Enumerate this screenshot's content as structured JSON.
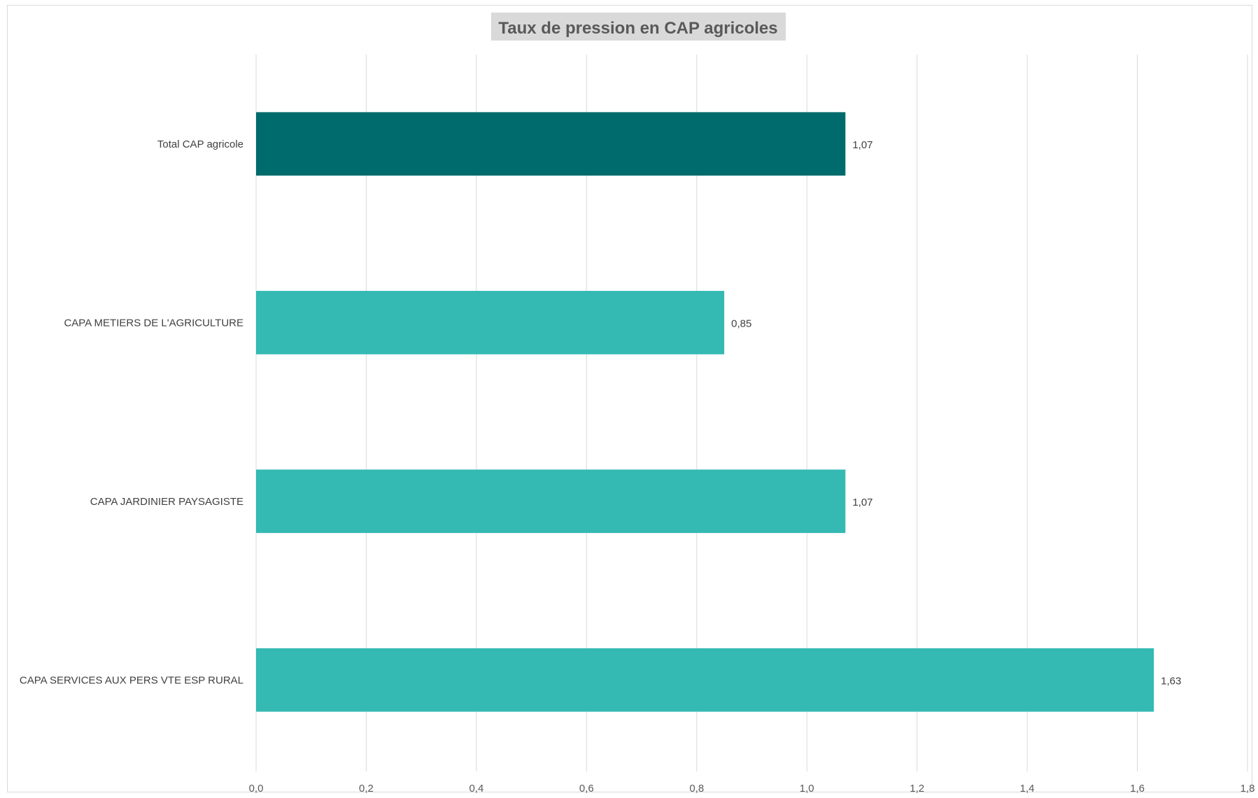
{
  "chart_data": {
    "type": "bar",
    "orientation": "horizontal",
    "title": "Taux de pression en CAP agricoles",
    "xlabel": "",
    "ylabel": "",
    "categories": [
      "Total CAP agricole",
      "CAPA METIERS DE L'AGRICULTURE",
      "CAPA JARDINIER PAYSAGISTE",
      "CAPA SERVICES AUX PERS VTE ESP RURAL"
    ],
    "values": [
      1.07,
      0.85,
      1.07,
      1.63
    ],
    "data_labels": [
      "1,07",
      "0,85",
      "1,07",
      "1,63"
    ],
    "bar_colors": [
      "#006b6c",
      "#34b9b3",
      "#34b9b3",
      "#34b9b3"
    ],
    "title_background": "#d9d9d9",
    "xlim": [
      0,
      1.8
    ],
    "xticks": [
      0,
      0.2,
      0.4,
      0.6,
      0.8,
      1.0,
      1.2,
      1.4,
      1.6,
      1.8
    ],
    "xtick_labels": [
      "0,0",
      "0,2",
      "0,4",
      "0,6",
      "0,8",
      "1,0",
      "1,2",
      "1,4",
      "1,6",
      "1,8"
    ],
    "grid": "vertical",
    "legend": "none"
  }
}
